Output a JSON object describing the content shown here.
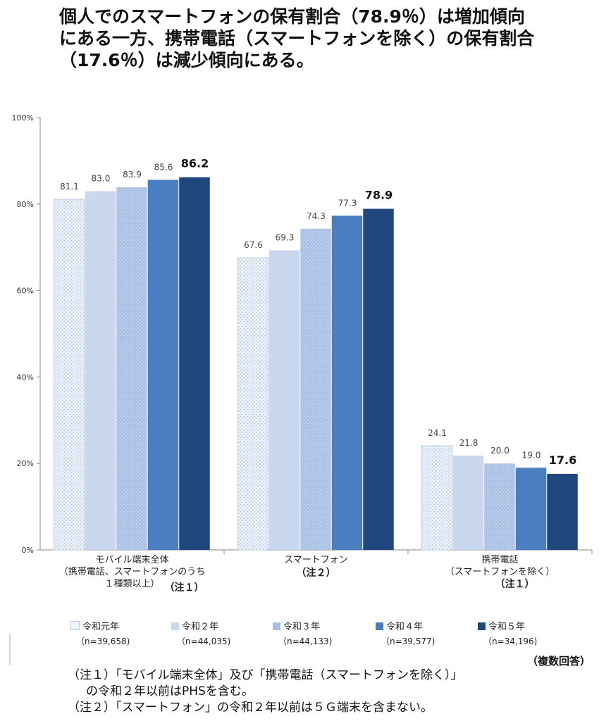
{
  "title": {
    "line1": "個人でのスマートフォンの保有割合（78.9％）は増加傾向",
    "line2": "にある一方、携帯電話（スマートフォンを除く）の保有割合",
    "line3": "（17.6％）は減少傾向にある。"
  },
  "chart_data": {
    "type": "bar",
    "y_ticks": [
      "100%",
      "80%",
      "60%",
      "40%",
      "20%",
      "0%"
    ],
    "ylim": [
      0,
      100
    ],
    "grid": false,
    "legend_position": "bottom",
    "colors": [
      "#e4ecf7",
      "#c9d8ee",
      "#a6c0e4",
      "#4a7ec0",
      "#1f467d"
    ],
    "categories": [
      {
        "lines": [
          "モバイル端末全体",
          "（携帯電話、スマートフォンのうち",
          "１種類以上）"
        ],
        "note": "（注１）"
      },
      {
        "lines": [
          "スマートフォン"
        ],
        "note": "（注２）"
      },
      {
        "lines": [
          "携帯電話",
          "（スマートフォンを除く）"
        ],
        "note": "（注１）"
      }
    ],
    "series": [
      {
        "name": "令和元年",
        "n": "（n=39,658)",
        "values": [
          81.1,
          67.6,
          24.1
        ],
        "labels": [
          "81.1",
          "67.6",
          "24.1"
        ]
      },
      {
        "name": "令和２年",
        "n": "（n=44,035)",
        "values": [
          83.0,
          69.3,
          21.8
        ],
        "labels": [
          "83.0",
          "69.3",
          "21.8"
        ]
      },
      {
        "name": "令和３年",
        "n": "（n=44,133)",
        "values": [
          83.9,
          74.3,
          20.0
        ],
        "labels": [
          "83.9",
          "74.3",
          "20.0"
        ]
      },
      {
        "name": "令和４年",
        "n": "（n=39,577)",
        "values": [
          85.6,
          77.3,
          19.0
        ],
        "labels": [
          "85.6",
          "77.3",
          "19.0"
        ]
      },
      {
        "name": "令和５年",
        "n": "（n=34,196)",
        "values": [
          86.2,
          78.9,
          17.6
        ],
        "labels": [
          "86.2",
          "78.9",
          "17.6"
        ]
      }
    ]
  },
  "response_note": "（複数回答）",
  "footnotes": {
    "line1": "（注１）「モバイル端末全体」及び「携帯電話（スマートフォンを除く）」",
    "line2": "の令和２年以前はPHSを含む。",
    "line3": "（注２）「スマートフォン」の令和２年以前は５Ｇ端末を含まない。"
  }
}
